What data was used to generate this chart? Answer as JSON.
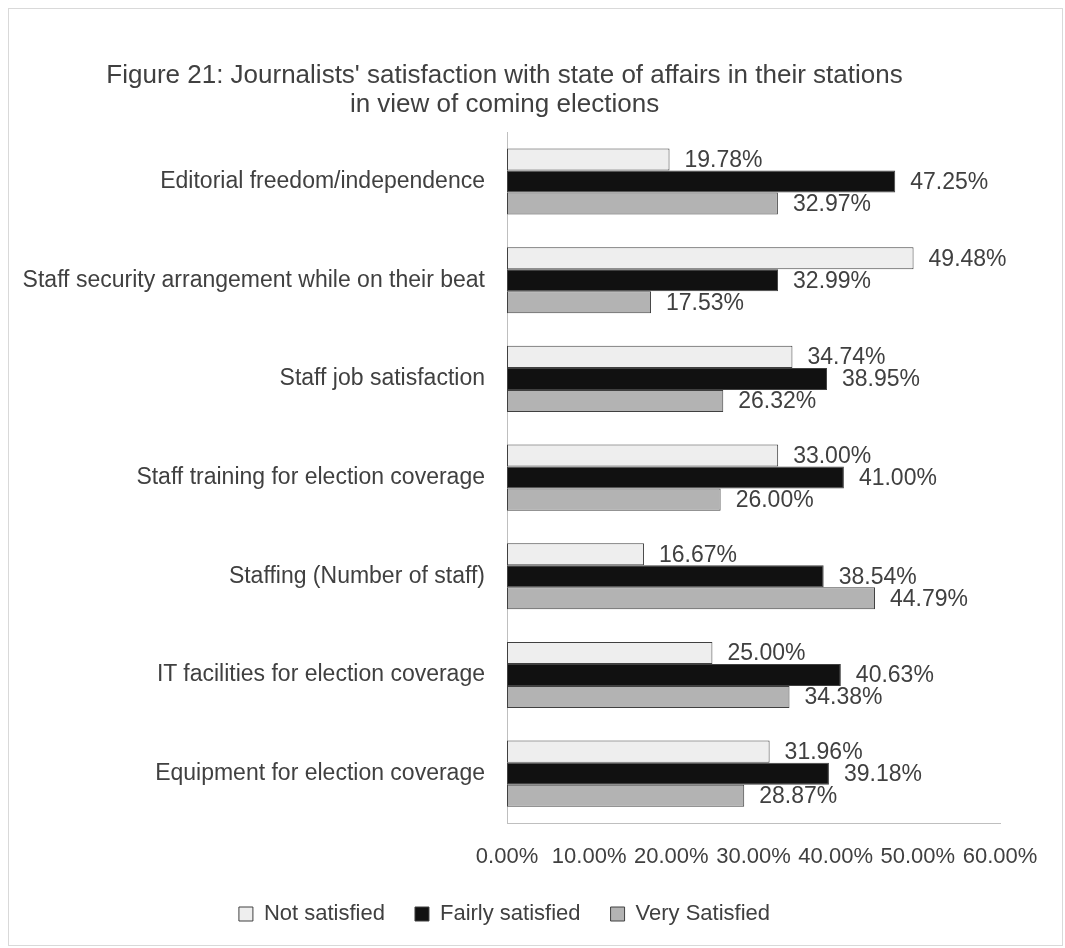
{
  "chart_data": {
    "type": "bar",
    "orientation": "horizontal",
    "title": "Figure 21: Journalists' satisfaction with state of affairs in their stations\nin view of coming elections",
    "categories": [
      "Editorial freedom/independence",
      "Staff security arrangement while on their beat",
      "Staff job satisfaction",
      "Staff training for election coverage",
      "Staffing (Number of staff)",
      "IT facilities for election coverage",
      "Equipment for election coverage"
    ],
    "series": [
      {
        "name": "Not satisfied",
        "color": "#eeeeee",
        "values": [
          19.78,
          49.48,
          34.74,
          33.0,
          16.67,
          25.0,
          31.96
        ],
        "value_labels": [
          "19.78%",
          "49.48%",
          "34.74%",
          "33.00%",
          "16.67%",
          "25.00%",
          "31.96%"
        ]
      },
      {
        "name": "Fairly satisfied",
        "color": "#111111",
        "values": [
          47.25,
          32.99,
          38.95,
          41.0,
          38.54,
          40.63,
          39.18
        ],
        "value_labels": [
          "47.25%",
          "32.99%",
          "38.95%",
          "41.00%",
          "38.54%",
          "40.63%",
          "39.18%"
        ]
      },
      {
        "name": "Very Satisfied",
        "color": "#b3b3b3",
        "values": [
          32.97,
          17.53,
          26.32,
          26.0,
          44.79,
          34.38,
          28.87
        ],
        "value_labels": [
          "32.97%",
          "17.53%",
          "26.32%",
          "26.00%",
          "44.79%",
          "34.38%",
          "28.87%"
        ]
      }
    ],
    "xlim": [
      0,
      60
    ],
    "xticks": [
      {
        "value": 0,
        "label": "0.00%"
      },
      {
        "value": 10,
        "label": "10.00%"
      },
      {
        "value": 20,
        "label": "20.00%"
      },
      {
        "value": 30,
        "label": "30.00%"
      },
      {
        "value": 40,
        "label": "40.00%"
      },
      {
        "value": 50,
        "label": "50.00%"
      },
      {
        "value": 60,
        "label": "60.00%"
      }
    ],
    "grid": false,
    "legend": "bottom"
  }
}
